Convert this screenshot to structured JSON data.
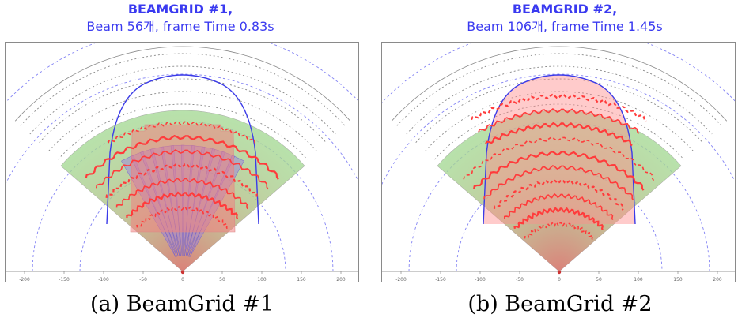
{
  "colors": {
    "heading": "#3a3af0",
    "field": "#ff3b3b",
    "coverage": "#8ad27a",
    "arc": "#5a5af0"
  },
  "panels": [
    {
      "title": "BEAMGRID #1,",
      "subtitle": "Beam 56개, frame Time 0.83s",
      "caption": "(a)  BeamGrid #1",
      "x_ticks": [
        "-200",
        "-150",
        "-100",
        "-50",
        "0",
        "50",
        "100",
        "150",
        "200"
      ],
      "beams": 56
    },
    {
      "title": "BEAMGRID #2,",
      "subtitle": "Beam 106개, frame Time 1.45s",
      "caption": "(b)  BeamGrid #2",
      "x_ticks": [
        "-200",
        "-150",
        "-100",
        "-50",
        "0",
        "50",
        "100",
        "150",
        "200"
      ],
      "beams": 106
    }
  ]
}
